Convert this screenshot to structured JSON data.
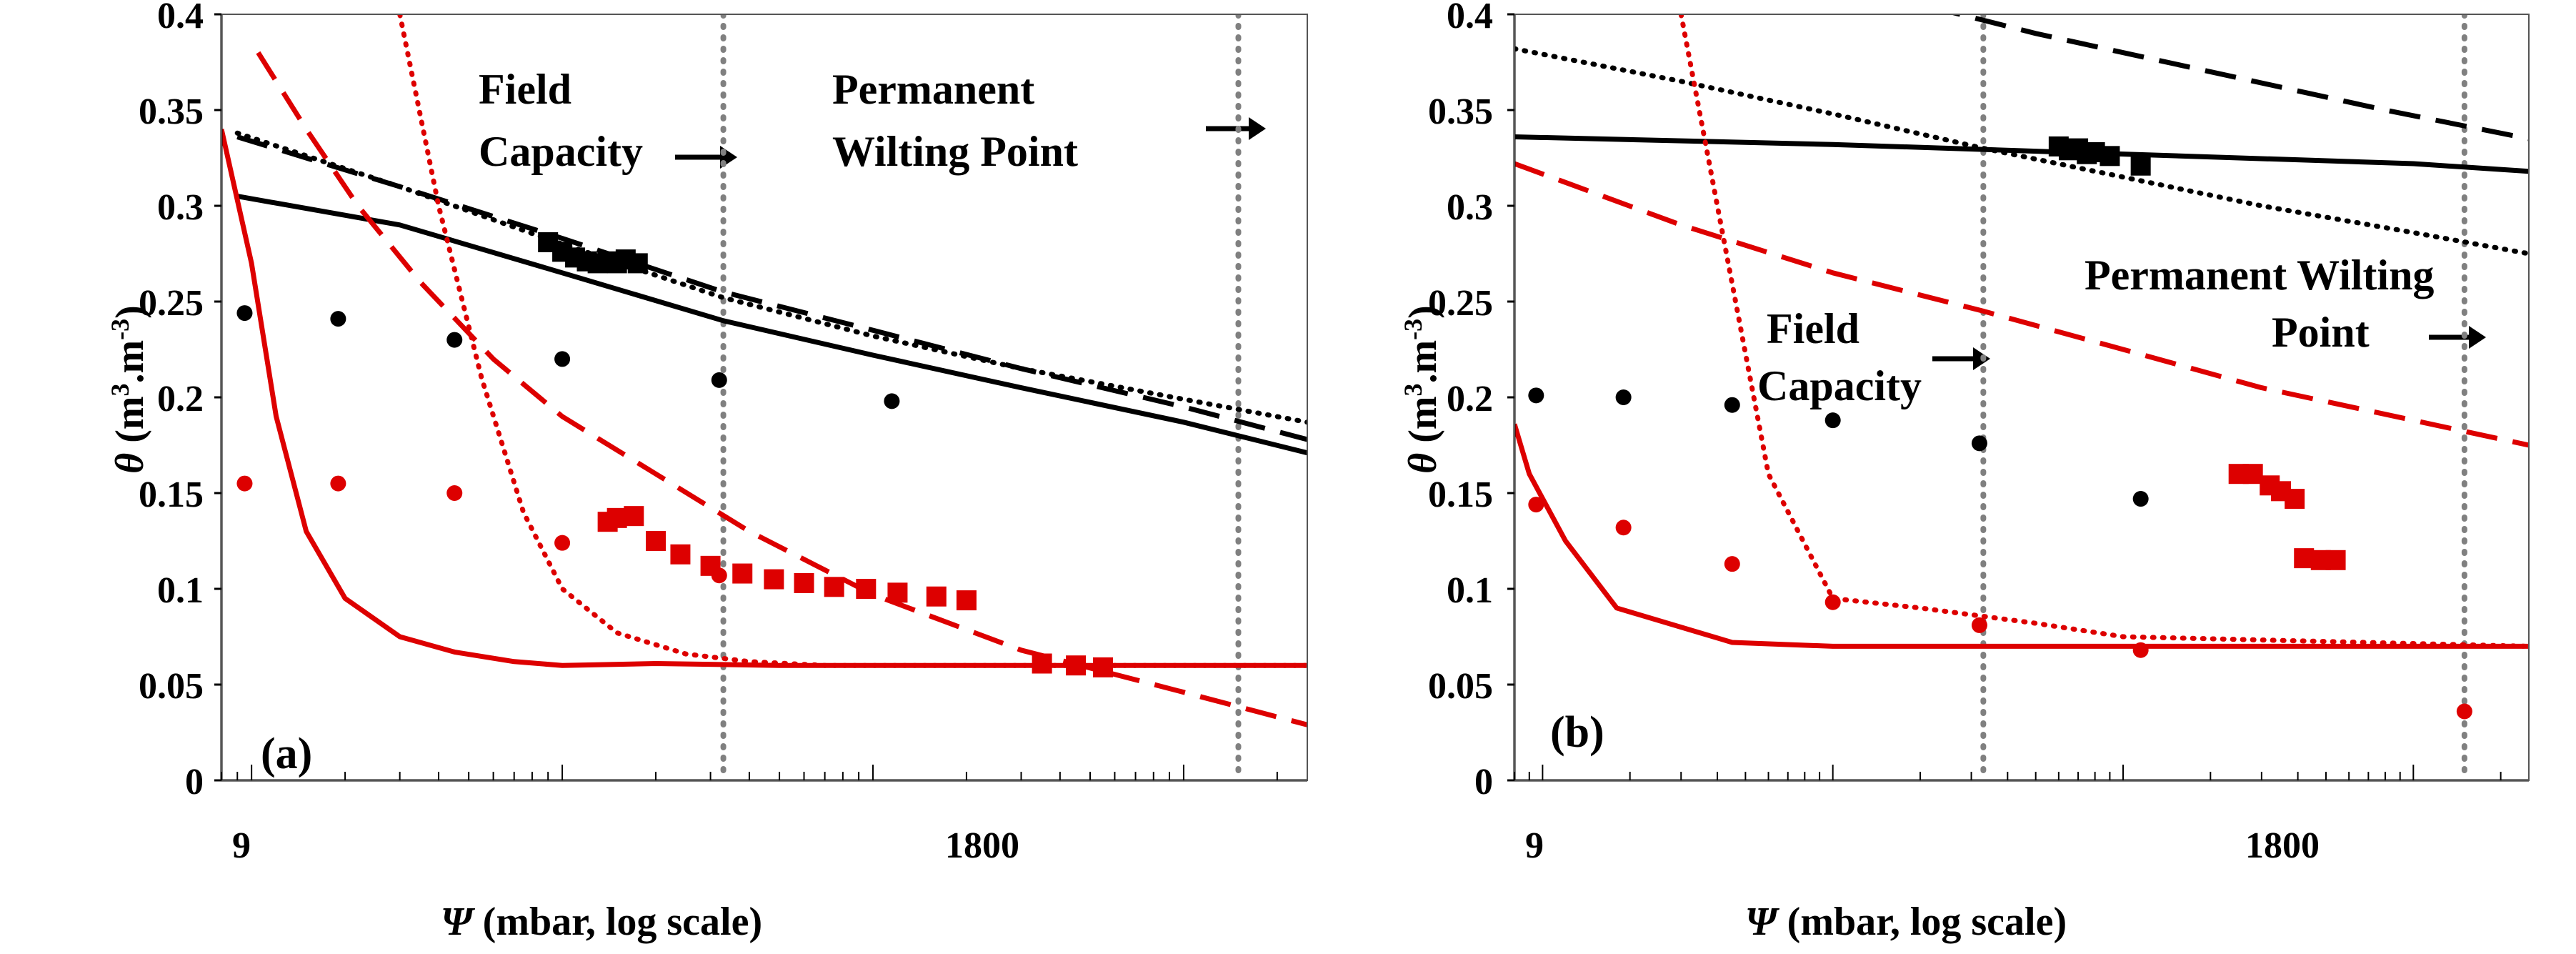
{
  "figure": {
    "x_axis_label_symbol": "Ψ",
    "x_axis_label_rest": " (mbar, log scale)",
    "y_axis_label_symbol": "θ",
    "y_axis_label_rest": " (m",
    "y_unit_sup1": "3",
    "y_unit_mid": ".m",
    "y_unit_sup2": "-3",
    "y_unit_close": ")"
  },
  "colors": {
    "black": "#000000",
    "red": "#dd0000",
    "gray": "#808080"
  },
  "chart_data": [
    {
      "type": "line",
      "panel_label": "(a)",
      "x_scale": "log",
      "xlim": [
        8,
        25000
      ],
      "ylim": [
        0,
        0.4
      ],
      "xtick_labels": [
        "9",
        "1800"
      ],
      "xtick_values": [
        9,
        1800
      ],
      "ytick_labels": [
        "0",
        "0.05",
        "0.1",
        "0.15",
        "0.2",
        "0.25",
        "0.3",
        "0.35",
        "0.4"
      ],
      "ytick_values": [
        0,
        0.05,
        0.1,
        0.15,
        0.2,
        0.25,
        0.3,
        0.35,
        0.4
      ],
      "vertical_lines": [
        {
          "x": 330,
          "label": "Field Capacity"
        },
        {
          "x": 15000,
          "label": "Permanent Wilting Point"
        }
      ],
      "annotations": {
        "field_capacity": [
          "Field",
          "Capacity"
        ],
        "wilting_point": [
          "Permanent",
          "Wilting Point"
        ]
      },
      "series": [
        {
          "name": "black solid",
          "color": "black",
          "style": "solid",
          "x": [
            9,
            30,
            100,
            330,
            1000,
            3000,
            10000,
            25000
          ],
          "y": [
            0.305,
            0.29,
            0.265,
            0.24,
            0.222,
            0.205,
            0.187,
            0.171
          ]
        },
        {
          "name": "black dashed",
          "color": "black",
          "style": "dashed",
          "x": [
            9,
            30,
            100,
            330,
            1000,
            3000,
            10000,
            25000
          ],
          "y": [
            0.336,
            0.31,
            0.283,
            0.255,
            0.235,
            0.215,
            0.195,
            0.178
          ]
        },
        {
          "name": "black dotted",
          "color": "black",
          "style": "dotted",
          "x": [
            9,
            30,
            100,
            330,
            1000,
            3000,
            10000,
            25000
          ],
          "y": [
            0.338,
            0.31,
            0.28,
            0.252,
            0.232,
            0.215,
            0.199,
            0.187
          ]
        },
        {
          "name": "red solid",
          "color": "red",
          "style": "solid",
          "x": [
            8,
            10,
            12,
            15,
            20,
            30,
            45,
            70,
            100,
            200,
            500,
            25000
          ],
          "y": [
            0.34,
            0.27,
            0.19,
            0.13,
            0.095,
            0.075,
            0.067,
            0.062,
            0.06,
            0.061,
            0.06,
            0.06
          ]
        },
        {
          "name": "red dashed",
          "color": "red",
          "style": "dashed",
          "x": [
            10.5,
            15,
            22,
            35,
            60,
            100,
            200,
            400,
            1000,
            3000,
            10000,
            25000
          ],
          "y": [
            0.38,
            0.34,
            0.3,
            0.26,
            0.22,
            0.19,
            0.16,
            0.13,
            0.097,
            0.068,
            0.046,
            0.029
          ]
        },
        {
          "name": "red dotted",
          "color": "red",
          "style": "dotted",
          "x": [
            30,
            40,
            55,
            75,
            100,
            150,
            250,
            400,
            700,
            1000,
            25000
          ],
          "y": [
            0.4,
            0.3,
            0.21,
            0.14,
            0.1,
            0.077,
            0.066,
            0.062,
            0.06,
            0.06,
            0.06
          ]
        }
      ],
      "black_dots": {
        "x": [
          9.5,
          19,
          45,
          100,
          320,
          1150
        ],
        "y": [
          0.244,
          0.241,
          0.23,
          0.22,
          0.209,
          0.198
        ]
      },
      "red_dots": {
        "x": [
          9.5,
          19,
          45,
          100,
          320
        ],
        "y": [
          0.155,
          0.155,
          0.15,
          0.124,
          0.107
        ]
      },
      "black_squares": {
        "x": [
          90,
          100,
          110,
          120,
          130,
          140,
          150,
          160,
          175
        ],
        "y": [
          0.281,
          0.276,
          0.273,
          0.271,
          0.27,
          0.271,
          0.27,
          0.272,
          0.27
        ]
      },
      "red_squares": {
        "x": [
          140,
          150,
          170,
          200,
          240,
          300,
          380,
          480,
          600,
          750,
          950,
          1200,
          1600,
          2000,
          3500,
          4500,
          5500
        ],
        "y": [
          0.135,
          0.137,
          0.138,
          0.125,
          0.118,
          0.112,
          0.108,
          0.105,
          0.103,
          0.101,
          0.1,
          0.098,
          0.096,
          0.094,
          0.061,
          0.06,
          0.059
        ]
      }
    },
    {
      "type": "line",
      "panel_label": "(b)",
      "x_scale": "log",
      "xlim": [
        8,
        25000
      ],
      "ylim": [
        0,
        0.4
      ],
      "xtick_labels": [
        "9",
        "1800"
      ],
      "xtick_values": [
        9,
        1800
      ],
      "ytick_labels": [
        "0",
        "0.05",
        "0.1",
        "0.15",
        "0.2",
        "0.25",
        "0.3",
        "0.35",
        "0.4"
      ],
      "ytick_values": [
        0,
        0.05,
        0.1,
        0.15,
        0.2,
        0.25,
        0.3,
        0.35,
        0.4
      ],
      "vertical_lines": [
        {
          "x": 330,
          "label": "Field Capacity"
        },
        {
          "x": 15000,
          "label": "Permanent Wilting Point"
        }
      ],
      "annotations": {
        "field_capacity": [
          "Field",
          "Capacity"
        ],
        "wilting_point": [
          "Permanent Wilting",
          "Point"
        ]
      },
      "series": [
        {
          "name": "black solid",
          "color": "black",
          "style": "solid",
          "x": [
            8,
            100,
            1000,
            10000,
            25000
          ],
          "y": [
            0.336,
            0.332,
            0.327,
            0.322,
            0.318
          ]
        },
        {
          "name": "black dashed",
          "color": "black",
          "style": "dashed",
          "x": [
            150,
            500,
            2000,
            8000,
            25000
          ],
          "y": [
            0.41,
            0.39,
            0.37,
            0.35,
            0.335
          ]
        },
        {
          "name": "black dotted",
          "color": "black",
          "style": "dotted",
          "x": [
            8,
            30,
            100,
            330,
            1000,
            3000,
            10000,
            25000
          ],
          "y": [
            0.382,
            0.365,
            0.348,
            0.33,
            0.315,
            0.3,
            0.286,
            0.275
          ]
        },
        {
          "name": "red solid",
          "color": "red",
          "style": "solid",
          "x": [
            8,
            9,
            12,
            18,
            45,
            100,
            25000
          ],
          "y": [
            0.186,
            0.16,
            0.125,
            0.09,
            0.072,
            0.07,
            0.07
          ]
        },
        {
          "name": "red dashed",
          "color": "red",
          "style": "dashed",
          "x": [
            8,
            30,
            100,
            330,
            1000,
            3000,
            10000,
            25000
          ],
          "y": [
            0.322,
            0.29,
            0.265,
            0.245,
            0.225,
            0.205,
            0.188,
            0.175
          ]
        },
        {
          "name": "red dotted",
          "color": "red",
          "style": "dotted",
          "x": [
            30,
            40,
            60,
            100,
            200,
            500,
            1000,
            25000
          ],
          "y": [
            0.4,
            0.3,
            0.16,
            0.095,
            0.09,
            0.082,
            0.075,
            0.07
          ]
        }
      ],
      "black_dots": {
        "x": [
          9.5,
          19,
          45,
          100,
          320,
          1150
        ],
        "y": [
          0.201,
          0.2,
          0.196,
          0.188,
          0.176,
          0.147
        ]
      },
      "red_dots": {
        "x": [
          9.5,
          19,
          45,
          100,
          320,
          1150,
          15000
        ],
        "y": [
          0.144,
          0.132,
          0.113,
          0.093,
          0.081,
          0.068,
          0.036
        ]
      },
      "black_squares": {
        "x": [
          600,
          650,
          700,
          750,
          800,
          900,
          1150
        ],
        "y": [
          0.331,
          0.329,
          0.33,
          0.327,
          0.328,
          0.326,
          0.321
        ]
      },
      "red_squares": {
        "x": [
          2500,
          2800,
          3200,
          3500,
          3900,
          4200,
          4800,
          5400
        ],
        "y": [
          0.16,
          0.16,
          0.154,
          0.151,
          0.147,
          0.116,
          0.115,
          0.115
        ]
      }
    }
  ]
}
